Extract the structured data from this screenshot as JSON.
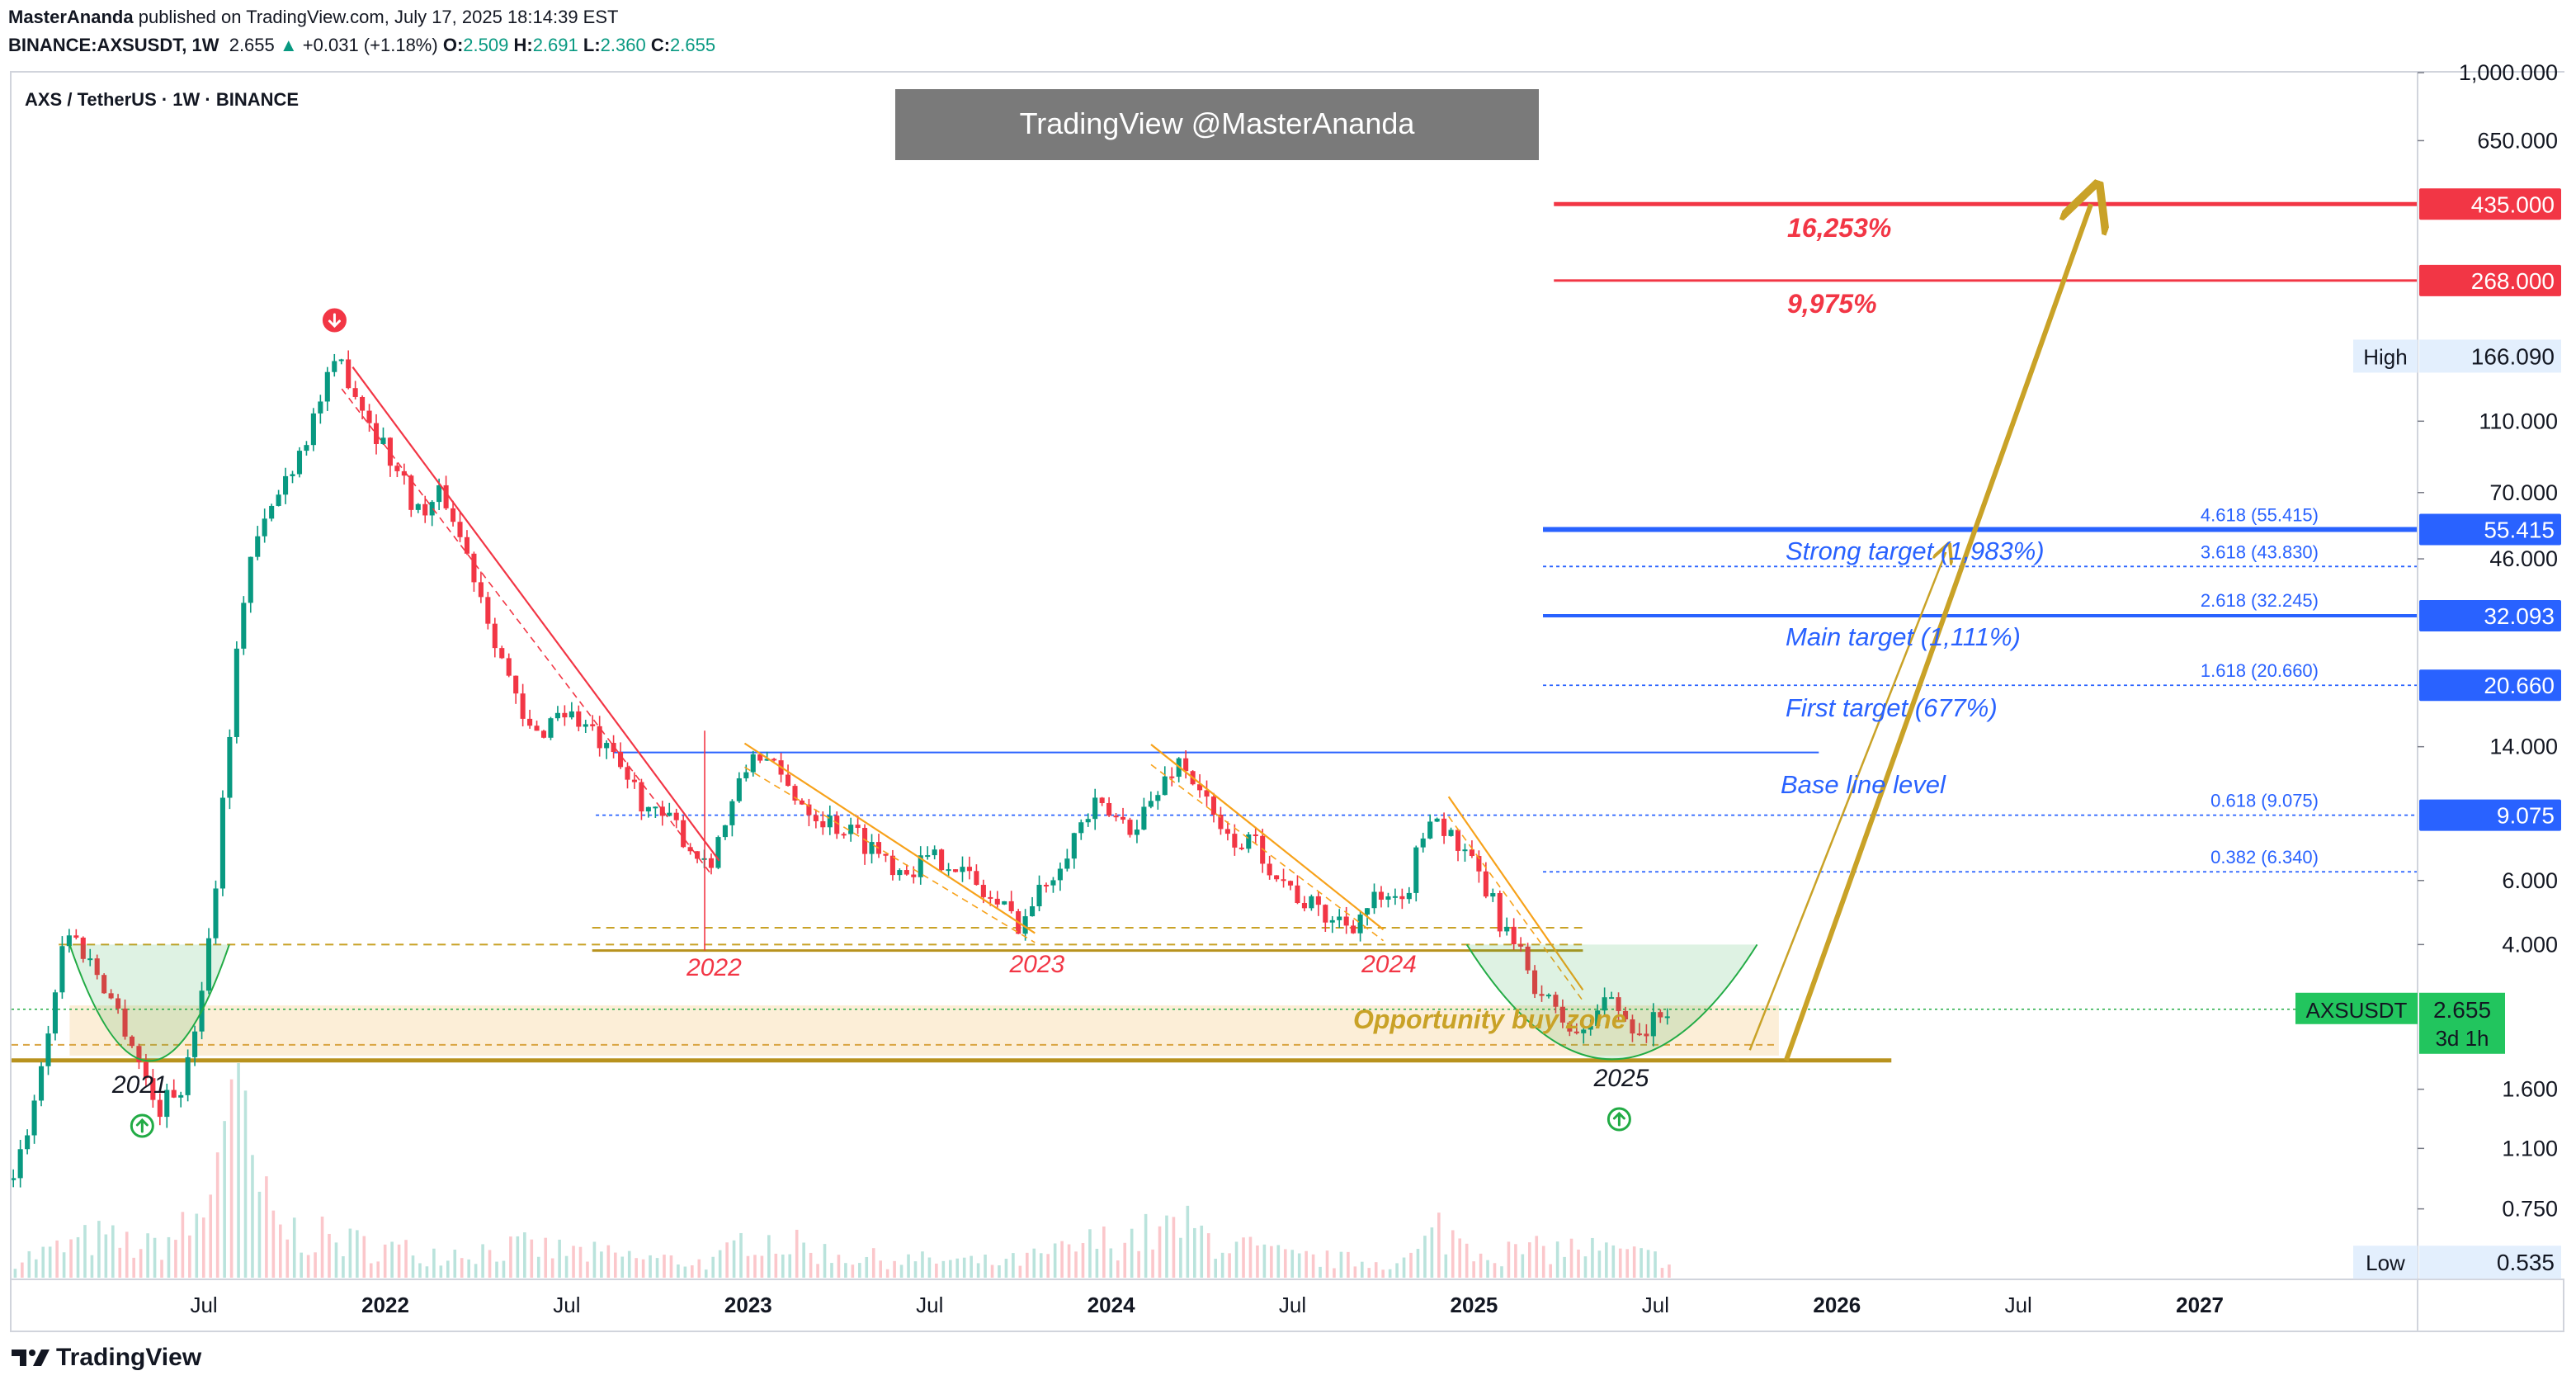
{
  "header": {
    "publisher": "MasterAnanda",
    "published_text": "published on TradingView.com, July 17, 2025 18:14:39 EST",
    "symbol": "BINANCE:AXSUSDT, 1W",
    "last": "2.655",
    "change_arrow": "▲",
    "change": "+0.031 (+1.18%)",
    "o_label": "O:",
    "o": "2.509",
    "h_label": "H:",
    "h": "2.691",
    "l_label": "L:",
    "l": "2.360",
    "c_label": "C:",
    "c": "2.655"
  },
  "legend": {
    "title": "AXS / TetherUS · 1W · BINANCE"
  },
  "watermark": "TradingView @MasterAnanda",
  "footer": {
    "brand": "TradingView"
  },
  "colors": {
    "up": "#089981",
    "down": "#F23645",
    "gold": "#C9A227",
    "blue": "#2962FF",
    "red": "#F23645",
    "green": "#22AB45",
    "zone": "#FBE7C6"
  },
  "chart_data": {
    "type": "candlestick",
    "scale": "log",
    "ylim": [
      0.48,
      1000
    ],
    "price_ticks": [
      {
        "v": 1000,
        "label": "1,000.000"
      },
      {
        "v": 650,
        "label": "650.000"
      },
      {
        "v": 110,
        "label": "110.000"
      },
      {
        "v": 70,
        "label": "70.000"
      },
      {
        "v": 46,
        "label": "46.000"
      },
      {
        "v": 14,
        "label": "14.000"
      },
      {
        "v": 6,
        "label": "6.000"
      },
      {
        "v": 4,
        "label": "4.000"
      },
      {
        "v": 1.6,
        "label": "1.600"
      },
      {
        "v": 1.1,
        "label": "1.100"
      },
      {
        "v": 0.75,
        "label": "0.750"
      }
    ],
    "price_badges": [
      {
        "v": 435,
        "label": "435.000",
        "color": "#F23645"
      },
      {
        "v": 268,
        "label": "268.000",
        "color": "#F23645"
      },
      {
        "v": 55.415,
        "label": "55.415",
        "color": "#2962FF"
      },
      {
        "v": 32.093,
        "label": "32.093",
        "color": "#2962FF"
      },
      {
        "v": 20.66,
        "label": "20.660",
        "color": "#2962FF"
      },
      {
        "v": 9.075,
        "label": "9.075",
        "color": "#2962FF"
      }
    ],
    "high": {
      "label": "High",
      "value": "166.090",
      "v": 166.09
    },
    "low": {
      "label": "Low",
      "value": "0.535",
      "v": 0.535
    },
    "current": {
      "symbol": "AXSUSDT",
      "value": "2.655",
      "countdown": "3d 1h",
      "v": 2.655
    },
    "x_ticks": [
      {
        "t": 2021.5,
        "label": "Jul",
        "bold": false
      },
      {
        "t": 2022,
        "label": "2022",
        "bold": true
      },
      {
        "t": 2022.5,
        "label": "Jul",
        "bold": false
      },
      {
        "t": 2023,
        "label": "2023",
        "bold": true
      },
      {
        "t": 2023.5,
        "label": "Jul",
        "bold": false
      },
      {
        "t": 2024,
        "label": "2024",
        "bold": true
      },
      {
        "t": 2024.5,
        "label": "Jul",
        "bold": false
      },
      {
        "t": 2025,
        "label": "2025",
        "bold": true
      },
      {
        "t": 2025.5,
        "label": "Jul",
        "bold": false
      },
      {
        "t": 2026,
        "label": "2026",
        "bold": true
      },
      {
        "t": 2026.5,
        "label": "Jul",
        "bold": false
      },
      {
        "t": 2027,
        "label": "2027",
        "bold": true
      }
    ],
    "price_path": [
      [
        2020.98,
        0.9
      ],
      [
        2021.05,
        1.8
      ],
      [
        2021.12,
        4.5
      ],
      [
        2021.22,
        3.2
      ],
      [
        2021.3,
        2.2
      ],
      [
        2021.37,
        1.4
      ],
      [
        2021.45,
        1.7
      ],
      [
        2021.52,
        4.5
      ],
      [
        2021.58,
        20
      ],
      [
        2021.62,
        45
      ],
      [
        2021.66,
        55
      ],
      [
        2021.72,
        75
      ],
      [
        2021.78,
        100
      ],
      [
        2021.84,
        140
      ],
      [
        2021.88,
        160
      ],
      [
        2021.94,
        120
      ],
      [
        2022.02,
        85
      ],
      [
        2022.1,
        60
      ],
      [
        2022.16,
        70
      ],
      [
        2022.2,
        55
      ],
      [
        2022.26,
        38
      ],
      [
        2022.32,
        25
      ],
      [
        2022.38,
        16
      ],
      [
        2022.42,
        15
      ],
      [
        2022.48,
        18
      ],
      [
        2022.55,
        16
      ],
      [
        2022.62,
        13
      ],
      [
        2022.68,
        11
      ],
      [
        2022.74,
        9
      ],
      [
        2022.8,
        8.5
      ],
      [
        2022.86,
        7.0
      ],
      [
        2022.9,
        7.0
      ],
      [
        2023.02,
        14
      ],
      [
        2023.1,
        11
      ],
      [
        2023.2,
        9
      ],
      [
        2023.3,
        8
      ],
      [
        2023.42,
        6.5
      ],
      [
        2023.55,
        7
      ],
      [
        2023.65,
        5.5
      ],
      [
        2023.75,
        4.6
      ],
      [
        2023.8,
        5.5
      ],
      [
        2023.88,
        7.5
      ],
      [
        2023.95,
        9.5
      ],
      [
        2024.05,
        8.5
      ],
      [
        2024.12,
        10
      ],
      [
        2024.18,
        13
      ],
      [
        2024.24,
        11
      ],
      [
        2024.3,
        8
      ],
      [
        2024.4,
        7.5
      ],
      [
        2024.5,
        5.6
      ],
      [
        2024.58,
        4.8
      ],
      [
        2024.66,
        4.6
      ],
      [
        2024.73,
        5.3
      ],
      [
        2024.8,
        5.0
      ],
      [
        2024.88,
        9.5
      ],
      [
        2024.95,
        7.5
      ],
      [
        2025.02,
        6
      ],
      [
        2025.08,
        4.5
      ],
      [
        2025.14,
        3.5
      ],
      [
        2025.22,
        2.6
      ],
      [
        2025.3,
        2.2
      ],
      [
        2025.36,
        2.9
      ],
      [
        2025.42,
        2.5
      ],
      [
        2025.47,
        2.3
      ],
      [
        2025.53,
        2.66
      ]
    ],
    "volume_path": [
      [
        2021.0,
        4
      ],
      [
        2021.2,
        8
      ],
      [
        2021.35,
        6
      ],
      [
        2021.5,
        12
      ],
      [
        2021.55,
        40
      ],
      [
        2021.6,
        32
      ],
      [
        2021.7,
        10
      ],
      [
        2021.9,
        7
      ],
      [
        2022.1,
        5
      ],
      [
        2022.4,
        6
      ],
      [
        2022.7,
        4
      ],
      [
        2022.9,
        3
      ],
      [
        2023.0,
        9
      ],
      [
        2023.3,
        4
      ],
      [
        2023.7,
        3
      ],
      [
        2023.95,
        7
      ],
      [
        2024.2,
        10
      ],
      [
        2024.5,
        4
      ],
      [
        2024.8,
        3
      ],
      [
        2024.9,
        10
      ],
      [
        2025.05,
        5
      ],
      [
        2025.3,
        6
      ],
      [
        2025.5,
        4
      ]
    ],
    "fib_levels": [
      {
        "label": "4.618 (55.415)",
        "v": 55.415
      },
      {
        "label": "3.618 (43.830)",
        "v": 43.83
      },
      {
        "label": "2.618 (32.245)",
        "v": 32.245
      },
      {
        "label": "1.618 (20.660)",
        "v": 20.66
      },
      {
        "label": "0.618 (9.075)",
        "v": 9.075
      },
      {
        "label": "0.382 (6.340)",
        "v": 6.34
      }
    ],
    "targets": [
      {
        "label": "16,253%",
        "v": 435,
        "color": "#F23645"
      },
      {
        "label": "9,975%",
        "v": 268,
        "color": "#F23645"
      },
      {
        "label": "Strong target (1,983%)",
        "v": 55.415,
        "color": "#2962FF"
      },
      {
        "label": "Main target (1,111%)",
        "v": 32.093,
        "color": "#2962FF"
      },
      {
        "label": "First target (677%)",
        "v": 20.66,
        "color": "#2962FF"
      },
      {
        "label": "Base line level",
        "v": 13.5,
        "color": "#2962FF"
      }
    ],
    "annotations": {
      "zone_label": "Opportunity buy zone",
      "year_2021": "2021",
      "year_2022": "2022",
      "year_2023": "2023",
      "year_2024": "2024",
      "year_2025": "2025"
    }
  }
}
